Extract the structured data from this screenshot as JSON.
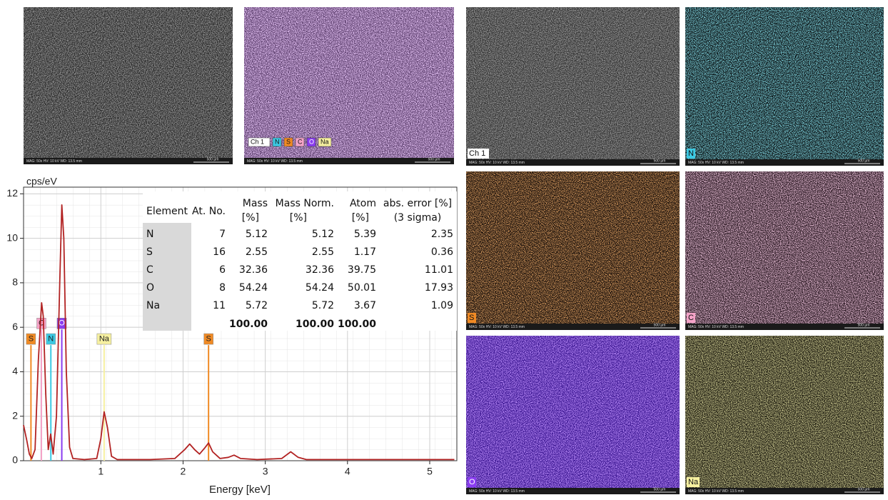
{
  "chart_data": {
    "type": "line",
    "y_label": "cps/eV",
    "x_label": "Energy [keV]",
    "color": "#b22222",
    "x": [
      0.06,
      0.1,
      0.13,
      0.16,
      0.2,
      0.24,
      0.28,
      0.3,
      0.33,
      0.36,
      0.39,
      0.42,
      0.46,
      0.5,
      0.525,
      0.55,
      0.58,
      0.62,
      0.66,
      0.8,
      0.95,
      1.0,
      1.04,
      1.08,
      1.13,
      1.2,
      1.6,
      1.9,
      2.02,
      2.08,
      2.14,
      2.2,
      2.27,
      2.31,
      2.36,
      2.45,
      2.55,
      2.62,
      2.7,
      2.9,
      3.2,
      3.31,
      3.4,
      3.5,
      3.8,
      5.3
    ],
    "values": [
      1.6,
      0.9,
      0.3,
      0.1,
      0.5,
      4.5,
      7.1,
      6.5,
      3,
      0.5,
      1.2,
      0.3,
      2,
      8,
      11.5,
      10,
      4,
      0.6,
      0.1,
      0.05,
      0.1,
      1,
      2.2,
      1.5,
      0.2,
      0.05,
      0.05,
      0.1,
      0.5,
      0.75,
      0.5,
      0.3,
      0.6,
      0.8,
      0.4,
      0.1,
      0.15,
      0.25,
      0.1,
      0.05,
      0.1,
      0.4,
      0.15,
      0.05,
      0.05,
      0.05
    ],
    "xlim": [
      0.06,
      5.33
    ],
    "ylim": [
      0,
      12.3
    ],
    "xticks": [
      1,
      2,
      3,
      4,
      5
    ],
    "yticks": [
      0,
      2,
      4,
      6,
      8,
      10,
      12
    ],
    "grid": true,
    "element_lines": [
      {
        "label": "S",
        "x": 0.15,
        "color": "#f08a24"
      },
      {
        "label": "C",
        "x": 0.277,
        "color": "#f4a3c8"
      },
      {
        "label": "N",
        "x": 0.392,
        "color": "#3cc9e3"
      },
      {
        "label": "O",
        "x": 0.525,
        "color": "#8a3cf0"
      },
      {
        "label": "Na",
        "x": 1.04,
        "color": "#f6f0a0"
      },
      {
        "label": "S",
        "x": 2.31,
        "color": "#f08a24"
      }
    ]
  },
  "table": {
    "headers": [
      [
        "Element"
      ],
      [
        "At. No."
      ],
      [
        "Mass",
        "[%]"
      ],
      [
        "Mass Norm.",
        "[%]"
      ],
      [
        "Atom",
        "[%]"
      ],
      [
        "abs. error [%]",
        "(3 sigma)"
      ]
    ],
    "rows": [
      [
        "N",
        "7",
        "5.12",
        "5.12",
        "5.39",
        "2.35"
      ],
      [
        "S",
        "16",
        "2.55",
        "2.55",
        "1.17",
        "0.36"
      ],
      [
        "C",
        "6",
        "32.36",
        "32.36",
        "39.75",
        "11.01"
      ],
      [
        "O",
        "8",
        "54.24",
        "54.24",
        "50.01",
        "17.93"
      ],
      [
        "Na",
        "11",
        "5.72",
        "5.72",
        "3.67",
        "1.09"
      ]
    ],
    "totals": [
      "100.00",
      "100.00",
      "100.00"
    ]
  },
  "image_footer": "MAG: 50x   HV: 10 kV   WD: 13.5 mm",
  "scale_bar": "500 µm",
  "images": [
    {
      "base": "#2c2c2c",
      "speckle": "#4a4a4a"
    },
    {
      "base": "#5d3f6e",
      "speckle": "#c98bea",
      "legend": [
        {
          "label": "Ch 1",
          "color": "#ffffff"
        },
        {
          "label": "N",
          "color": "#3cc9e3"
        },
        {
          "label": "S",
          "color": "#f08a24"
        },
        {
          "label": "C",
          "color": "#f4a3c8"
        },
        {
          "label": "O",
          "color": "#8a3cf0"
        },
        {
          "label": "Na",
          "color": "#f6f0a0"
        }
      ]
    },
    {
      "label": "Ch 1",
      "base": "#333333",
      "speckle": "#4d4d4d",
      "color": "#ffffff"
    },
    {
      "label": "N",
      "base": "#0a1214",
      "speckle": "#2f8fa0",
      "color": "#3cc9e3"
    },
    {
      "label": "S",
      "base": "#150c08",
      "speckle": "#9a4a1a",
      "color": "#f08a24"
    },
    {
      "label": "C",
      "base": "#2a1822",
      "speckle": "#c07aa0",
      "color": "#f4a3c8"
    },
    {
      "label": "O",
      "base": "#3a1590",
      "speckle": "#7a40f0",
      "color": "#8a3cf0"
    },
    {
      "label": "Na",
      "base": "#1e1c10",
      "speckle": "#8a8540",
      "color": "#f6f0a0"
    }
  ]
}
